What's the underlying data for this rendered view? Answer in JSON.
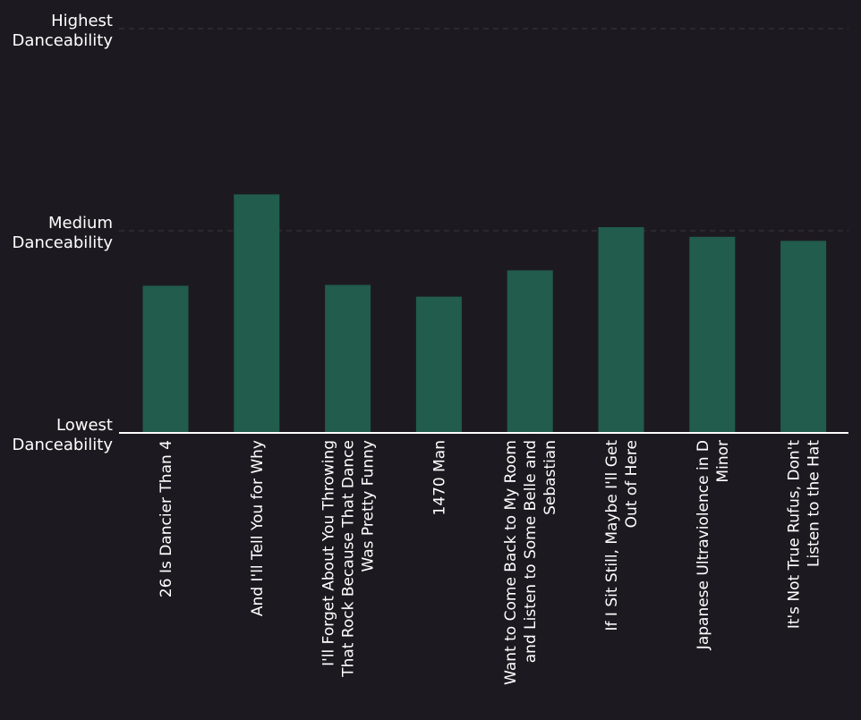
{
  "chart_data": {
    "type": "bar",
    "categories": [
      [
        "26 Is Dancier Than 4"
      ],
      [
        "And I'll Tell You for Why"
      ],
      [
        "I'll Forget About You Throwing",
        "That Rock Because That Dance",
        "Was Pretty Funny"
      ],
      [
        "1470 Man"
      ],
      [
        "Want to Come Back to My Room",
        "and Listen to Some Belle and",
        "Sebastian"
      ],
      [
        "If I Sit Still, Maybe I'll Get",
        "Out of Here"
      ],
      [
        "Japanese Ultraviolence in D",
        "Minor"
      ],
      [
        "It's Not True Rufus, Don't",
        "Listen to the Hat"
      ]
    ],
    "values": [
      0.364,
      0.59,
      0.366,
      0.337,
      0.402,
      0.509,
      0.485,
      0.475
    ],
    "ylim": [
      0,
      1
    ],
    "yticks": [
      {
        "value": 0,
        "label": [
          "Lowest",
          "Danceability"
        ]
      },
      {
        "value": 0.5,
        "label": [
          "Medium",
          "Danceability"
        ]
      },
      {
        "value": 1,
        "label": [
          "Highest",
          "Danceability"
        ]
      }
    ],
    "title": "",
    "xlabel": "",
    "ylabel": "",
    "grid": true,
    "colors": {
      "bar": "#215c4d",
      "background": "#1c1a20",
      "text": "#ffffff",
      "grid": "#3a3740",
      "axis": "#ffffff"
    }
  }
}
